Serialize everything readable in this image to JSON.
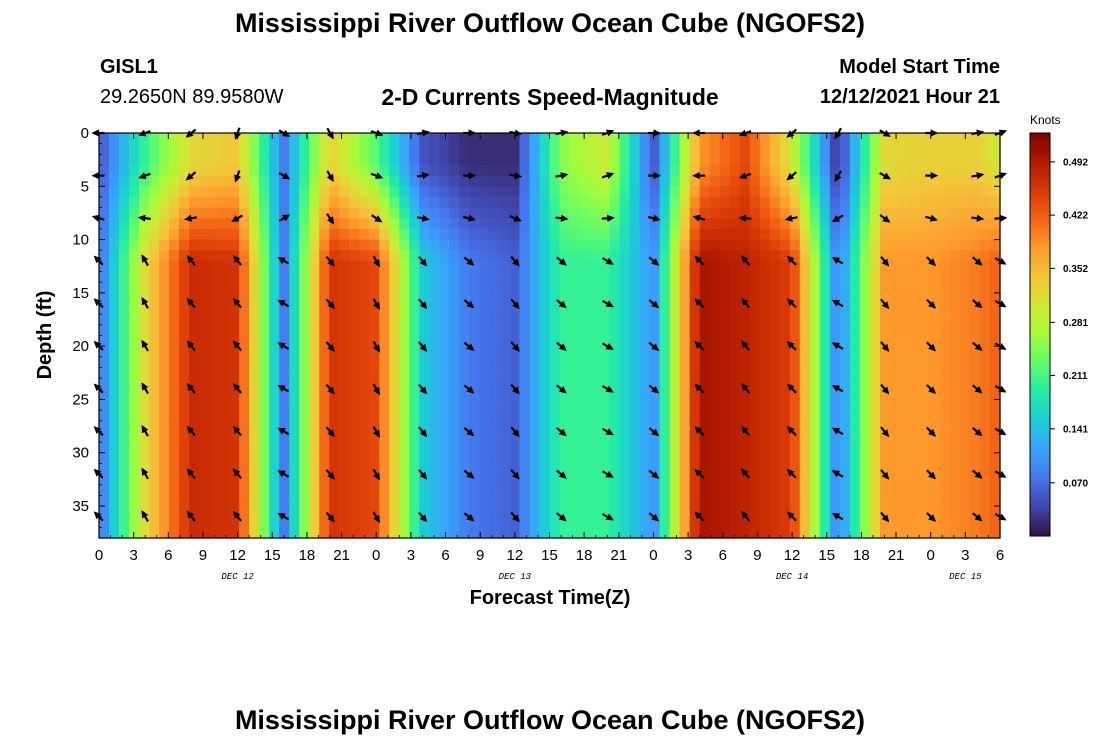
{
  "header": {
    "title": "Mississippi River Outflow Ocean Cube (NGOFS2)",
    "station_id": "GISL1",
    "station_coords": "29.2650N  89.9580W",
    "subtitle": "2-D Currents Speed-Magnitude",
    "model_start_label": "Model Start Time",
    "model_start_value": "12/12/2021 Hour 21"
  },
  "footer": {
    "title": "Mississippi River Outflow Ocean Cube (NGOFS2)"
  },
  "colorbar": {
    "unit": "Knots",
    "ticks": [
      0.07,
      0.141,
      0.211,
      0.281,
      0.352,
      0.422,
      0.492
    ],
    "tick_labels": [
      "0.070",
      "0.141",
      "0.211",
      "0.281",
      "0.352",
      "0.422",
      "0.492"
    ],
    "range": [
      0.0,
      0.53
    ],
    "colors": [
      "#30123b",
      "#4145ab",
      "#4675ed",
      "#39a2fc",
      "#1bcfd4",
      "#24eca6",
      "#61fc6c",
      "#a4fc3b",
      "#d1e834",
      "#f3c63a",
      "#fe9b2d",
      "#f36315",
      "#d93806",
      "#b11901",
      "#7a0402"
    ]
  },
  "chart_data": {
    "type": "heatmap",
    "xlabel": "Forecast Time(Z)",
    "ylabel": "Depth (ft)",
    "xlim": [
      0,
      78
    ],
    "ylim": [
      38,
      0
    ],
    "x_ticks": [
      0,
      3,
      6,
      9,
      12,
      15,
      18,
      21,
      24,
      27,
      30,
      33,
      36,
      39,
      42,
      45,
      48,
      51,
      54,
      57,
      60,
      63,
      66,
      69,
      72,
      75,
      78
    ],
    "x_tick_labels": [
      "0",
      "3",
      "6",
      "9",
      "12",
      "15",
      "18",
      "21",
      "0",
      "3",
      "6",
      "9",
      "12",
      "15",
      "18",
      "21",
      "0",
      "3",
      "6",
      "9",
      "12",
      "15",
      "18",
      "21",
      "0",
      "3",
      "6"
    ],
    "y_ticks": [
      0,
      5,
      10,
      15,
      20,
      25,
      30,
      35
    ],
    "y_tick_labels": [
      "0",
      "5",
      "10",
      "15",
      "20",
      "25",
      "30",
      "35"
    ],
    "date_labels": [
      {
        "x": 12,
        "label": "DEC 12"
      },
      {
        "x": 36,
        "label": "DEC 13"
      },
      {
        "x": 60,
        "label": "DEC 14"
      },
      {
        "x": 75,
        "label": "DEC 15"
      }
    ],
    "profile_times": [
      0,
      4,
      8,
      12,
      16,
      20,
      24,
      28,
      32,
      36,
      40,
      44,
      48,
      52,
      56,
      60,
      64,
      68,
      72,
      76,
      78
    ],
    "surface_speed": [
      0.05,
      0.2,
      0.32,
      0.34,
      0.08,
      0.33,
      0.22,
      0.05,
      0.02,
      0.02,
      0.25,
      0.3,
      0.05,
      0.38,
      0.44,
      0.3,
      0.02,
      0.32,
      0.33,
      0.33,
      0.3
    ],
    "deep_speed": [
      0.07,
      0.32,
      0.47,
      0.46,
      0.08,
      0.46,
      0.44,
      0.15,
      0.08,
      0.06,
      0.2,
      0.2,
      0.1,
      0.5,
      0.48,
      0.45,
      0.08,
      0.38,
      0.38,
      0.4,
      0.42
    ],
    "vector_times": [
      0,
      4,
      8,
      12,
      16,
      20,
      24,
      28,
      32,
      36,
      40,
      44,
      48,
      52,
      56,
      60,
      64,
      68,
      72,
      76,
      78
    ],
    "vector_depths": [
      0,
      4,
      8,
      12,
      16,
      20,
      24,
      28,
      32,
      36
    ],
    "vector_dir_surface_deg": [
      270,
      250,
      230,
      200,
      120,
      150,
      110,
      80,
      90,
      100,
      80,
      70,
      90,
      270,
      250,
      230,
      210,
      120,
      90,
      80,
      70
    ],
    "vector_dir_deep_deg": [
      315,
      330,
      320,
      320,
      300,
      140,
      150,
      140,
      130,
      140,
      130,
      120,
      130,
      315,
      320,
      315,
      300,
      140,
      135,
      130,
      120
    ]
  }
}
